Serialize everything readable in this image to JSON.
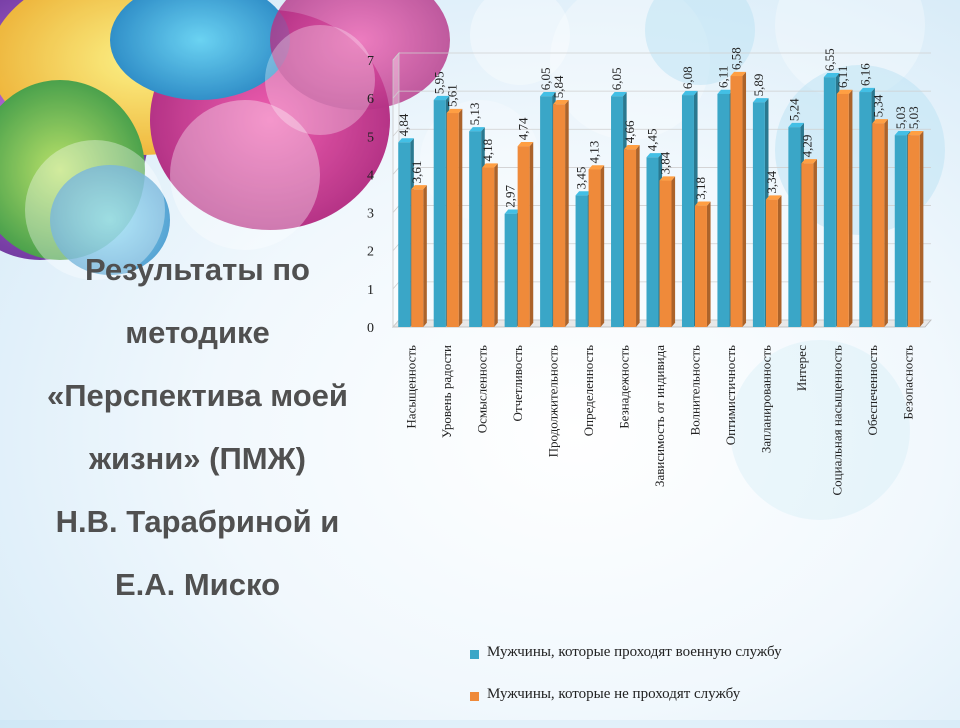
{
  "slide": {
    "title_lines": [
      "Результаты по",
      "методике",
      "«Перспектива моей",
      "жизни» (ПМЖ)",
      "Н.В. Тарабриной и",
      "Е.А. Миско"
    ]
  },
  "colors": {
    "series1": "#3aa6c7",
    "series2": "#ef8a3a"
  },
  "chart_data": {
    "type": "bar",
    "ylim": [
      0,
      7
    ],
    "yticks": [
      0,
      1,
      2,
      3,
      4,
      5,
      6,
      7
    ],
    "grid": true,
    "legend_position": "bottom",
    "categories": [
      "Насыщенность",
      "Уровень радости",
      "Осмысленность",
      "Отчетливость",
      "Продолжительность",
      "Определенность",
      "Безнадежность",
      "Зависимость от индивида",
      "Волнительность",
      "Оптимистичность",
      "Запланированность",
      "Интерес",
      "Социальная насыщенность",
      "Обеспеченность",
      "Безопасность"
    ],
    "series": [
      {
        "name": "Мужчины, которые проходят военную службу",
        "values": [
          4.84,
          5.95,
          5.13,
          2.97,
          6.05,
          3.45,
          6.05,
          4.45,
          6.08,
          6.11,
          5.89,
          5.24,
          6.55,
          6.16,
          5.03
        ],
        "labels": [
          "4,84",
          "5,95",
          "5,13",
          "2,97",
          "6,05",
          "3,45",
          "6,05",
          "4,45",
          "6,08",
          "6,11",
          "5,89",
          "5,24",
          "6,55",
          "6,16",
          "5,03"
        ]
      },
      {
        "name": "Мужчины, которые не проходят службу",
        "values": [
          3.61,
          5.61,
          4.18,
          4.74,
          5.84,
          4.13,
          4.66,
          3.84,
          3.18,
          6.58,
          3.34,
          4.29,
          6.11,
          5.34,
          5.03
        ],
        "labels": [
          "3,61",
          "5,61",
          "4,18",
          "4,74",
          "5,84",
          "4,13",
          "4,66",
          "3,84",
          "3,18",
          "6,58",
          "3,34",
          "4,29",
          "6,11",
          "5,34",
          "5,03"
        ]
      }
    ]
  }
}
